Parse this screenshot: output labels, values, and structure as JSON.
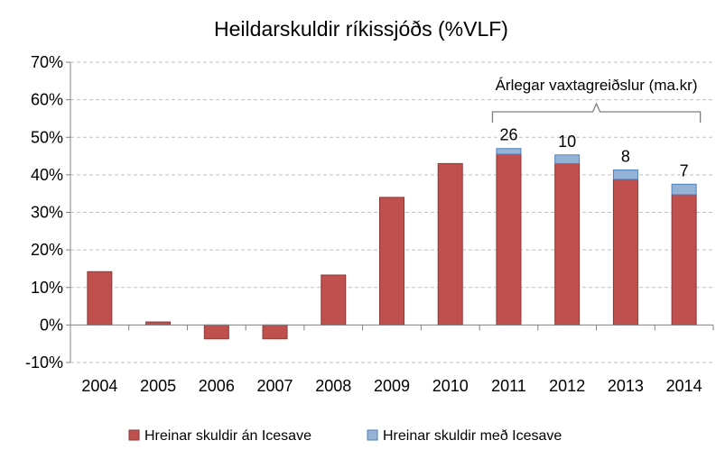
{
  "chart_data": {
    "type": "bar",
    "stacked": true,
    "title": "Heildarskuldir ríkissjóðs (%VLF)",
    "xlabel": "",
    "ylabel": "",
    "categories": [
      "2004",
      "2005",
      "2006",
      "2007",
      "2008",
      "2009",
      "2010",
      "2011",
      "2012",
      "2013",
      "2014"
    ],
    "ylim": [
      -10,
      70
    ],
    "ytick_values": [
      -10,
      0,
      10,
      20,
      30,
      40,
      50,
      60,
      70
    ],
    "ytick_labels": [
      "-10%",
      "0%",
      "10%",
      "20%",
      "30%",
      "40%",
      "50%",
      "60%",
      "70%"
    ],
    "grid": true,
    "legend_position": "bottom",
    "series": [
      {
        "name": "Hreinar skuldir án Icesave",
        "color": "#c0504d",
        "values": [
          14.2,
          0.8,
          -3.7,
          -3.7,
          13.3,
          34.0,
          43.0,
          45.5,
          43.0,
          38.8,
          34.7
        ]
      },
      {
        "name": "Hreinar skuldir með Icesave",
        "color": "#95b3d7",
        "values": [
          null,
          null,
          null,
          null,
          null,
          null,
          null,
          1.5,
          2.3,
          2.5,
          2.8
        ]
      }
    ],
    "data_labels": [
      {
        "category": "2011",
        "text": "26"
      },
      {
        "category": "2012",
        "text": "10"
      },
      {
        "category": "2013",
        "text": "8"
      },
      {
        "category": "2014",
        "text": "7"
      }
    ],
    "annotation": {
      "text": "Árlegar vaxtagreiðslur (ma.kr)",
      "from": "2011",
      "to": "2014"
    }
  }
}
